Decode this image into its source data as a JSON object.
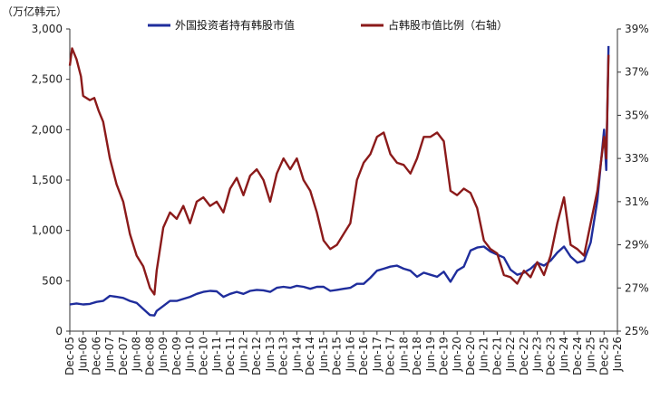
{
  "chart_data": {
    "type": "line",
    "unit_left": "（万亿韩元）",
    "legend_position": "top",
    "grid": false,
    "series": [
      {
        "name": "外国投资者持有韩股市值",
        "axis": "left",
        "color": "#1f2d9c",
        "points": [
          [
            "2005-12",
            265
          ],
          [
            "2006-03",
            275
          ],
          [
            "2006-06",
            265
          ],
          [
            "2006-09",
            270
          ],
          [
            "2006-12",
            290
          ],
          [
            "2007-03",
            300
          ],
          [
            "2007-06",
            350
          ],
          [
            "2007-09",
            340
          ],
          [
            "2007-12",
            330
          ],
          [
            "2008-03",
            300
          ],
          [
            "2008-06",
            280
          ],
          [
            "2008-09",
            220
          ],
          [
            "2008-12",
            160
          ],
          [
            "2009-02",
            155
          ],
          [
            "2009-03",
            200
          ],
          [
            "2009-06",
            250
          ],
          [
            "2009-09",
            300
          ],
          [
            "2009-12",
            300
          ],
          [
            "2010-03",
            320
          ],
          [
            "2010-06",
            340
          ],
          [
            "2010-09",
            370
          ],
          [
            "2010-12",
            390
          ],
          [
            "2011-03",
            400
          ],
          [
            "2011-06",
            395
          ],
          [
            "2011-09",
            340
          ],
          [
            "2011-12",
            370
          ],
          [
            "2012-03",
            390
          ],
          [
            "2012-06",
            370
          ],
          [
            "2012-09",
            400
          ],
          [
            "2012-12",
            410
          ],
          [
            "2013-03",
            405
          ],
          [
            "2013-06",
            390
          ],
          [
            "2013-09",
            430
          ],
          [
            "2013-12",
            440
          ],
          [
            "2014-03",
            430
          ],
          [
            "2014-06",
            450
          ],
          [
            "2014-09",
            440
          ],
          [
            "2014-12",
            420
          ],
          [
            "2015-03",
            440
          ],
          [
            "2015-06",
            440
          ],
          [
            "2015-09",
            400
          ],
          [
            "2015-12",
            410
          ],
          [
            "2016-03",
            420
          ],
          [
            "2016-06",
            430
          ],
          [
            "2016-09",
            470
          ],
          [
            "2016-12",
            470
          ],
          [
            "2017-03",
            530
          ],
          [
            "2017-06",
            600
          ],
          [
            "2017-09",
            620
          ],
          [
            "2017-12",
            640
          ],
          [
            "2018-03",
            650
          ],
          [
            "2018-06",
            620
          ],
          [
            "2018-09",
            600
          ],
          [
            "2018-12",
            540
          ],
          [
            "2019-03",
            580
          ],
          [
            "2019-06",
            560
          ],
          [
            "2019-09",
            540
          ],
          [
            "2019-12",
            590
          ],
          [
            "2020-03",
            490
          ],
          [
            "2020-06",
            600
          ],
          [
            "2020-09",
            640
          ],
          [
            "2020-12",
            800
          ],
          [
            "2021-03",
            830
          ],
          [
            "2021-06",
            840
          ],
          [
            "2021-09",
            790
          ],
          [
            "2021-12",
            760
          ],
          [
            "2022-03",
            730
          ],
          [
            "2022-06",
            610
          ],
          [
            "2022-09",
            560
          ],
          [
            "2022-12",
            580
          ],
          [
            "2023-03",
            620
          ],
          [
            "2023-06",
            680
          ],
          [
            "2023-09",
            650
          ],
          [
            "2023-12",
            700
          ],
          [
            "2024-03",
            780
          ],
          [
            "2024-06",
            840
          ],
          [
            "2024-09",
            740
          ],
          [
            "2024-12",
            680
          ],
          [
            "2025-03",
            700
          ],
          [
            "2025-06",
            880
          ],
          [
            "2025-09",
            1300
          ],
          [
            "2025-12",
            2000
          ],
          [
            "2026-01",
            1600
          ],
          [
            "2026-02",
            2830
          ]
        ]
      },
      {
        "name": "占韩股市值比例（右轴）",
        "axis": "right",
        "color": "#8b1a1a",
        "points": [
          [
            "2005-12",
            37.3
          ],
          [
            "2006-01",
            38.1
          ],
          [
            "2006-03",
            37.6
          ],
          [
            "2006-05",
            36.8
          ],
          [
            "2006-06",
            35.9
          ],
          [
            "2006-09",
            35.7
          ],
          [
            "2006-11",
            35.8
          ],
          [
            "2007-01",
            35.2
          ],
          [
            "2007-03",
            34.7
          ],
          [
            "2007-06",
            33.0
          ],
          [
            "2007-09",
            31.8
          ],
          [
            "2007-12",
            31.0
          ],
          [
            "2008-03",
            29.5
          ],
          [
            "2008-06",
            28.5
          ],
          [
            "2008-09",
            28.0
          ],
          [
            "2008-12",
            27.0
          ],
          [
            "2009-02",
            26.7
          ],
          [
            "2009-03",
            27.8
          ],
          [
            "2009-06",
            29.8
          ],
          [
            "2009-09",
            30.5
          ],
          [
            "2009-12",
            30.2
          ],
          [
            "2010-03",
            30.8
          ],
          [
            "2010-06",
            30.0
          ],
          [
            "2010-09",
            31.0
          ],
          [
            "2010-12",
            31.2
          ],
          [
            "2011-03",
            30.8
          ],
          [
            "2011-06",
            31.0
          ],
          [
            "2011-09",
            30.5
          ],
          [
            "2011-12",
            31.6
          ],
          [
            "2012-03",
            32.1
          ],
          [
            "2012-06",
            31.3
          ],
          [
            "2012-09",
            32.2
          ],
          [
            "2012-12",
            32.5
          ],
          [
            "2013-03",
            32.0
          ],
          [
            "2013-06",
            31.0
          ],
          [
            "2013-09",
            32.3
          ],
          [
            "2013-12",
            33.0
          ],
          [
            "2014-03",
            32.5
          ],
          [
            "2014-06",
            33.0
          ],
          [
            "2014-09",
            32.0
          ],
          [
            "2014-12",
            31.5
          ],
          [
            "2015-03",
            30.5
          ],
          [
            "2015-06",
            29.2
          ],
          [
            "2015-09",
            28.8
          ],
          [
            "2015-12",
            29.0
          ],
          [
            "2016-03",
            29.5
          ],
          [
            "2016-06",
            30.0
          ],
          [
            "2016-09",
            32.0
          ],
          [
            "2016-12",
            32.8
          ],
          [
            "2017-03",
            33.2
          ],
          [
            "2017-06",
            34.0
          ],
          [
            "2017-09",
            34.2
          ],
          [
            "2017-12",
            33.2
          ],
          [
            "2018-03",
            32.8
          ],
          [
            "2018-06",
            32.7
          ],
          [
            "2018-09",
            32.3
          ],
          [
            "2018-12",
            33.0
          ],
          [
            "2019-03",
            34.0
          ],
          [
            "2019-06",
            34.0
          ],
          [
            "2019-09",
            34.2
          ],
          [
            "2019-12",
            33.8
          ],
          [
            "2020-03",
            31.5
          ],
          [
            "2020-06",
            31.3
          ],
          [
            "2020-09",
            31.6
          ],
          [
            "2020-12",
            31.4
          ],
          [
            "2021-03",
            30.7
          ],
          [
            "2021-06",
            29.2
          ],
          [
            "2021-09",
            28.8
          ],
          [
            "2021-12",
            28.6
          ],
          [
            "2022-03",
            27.6
          ],
          [
            "2022-06",
            27.5
          ],
          [
            "2022-09",
            27.2
          ],
          [
            "2022-12",
            27.8
          ],
          [
            "2023-03",
            27.5
          ],
          [
            "2023-06",
            28.2
          ],
          [
            "2023-09",
            27.6
          ],
          [
            "2023-12",
            28.5
          ],
          [
            "2024-03",
            30.0
          ],
          [
            "2024-06",
            31.2
          ],
          [
            "2024-09",
            29.0
          ],
          [
            "2024-12",
            28.8
          ],
          [
            "2025-03",
            28.5
          ],
          [
            "2025-06",
            30.0
          ],
          [
            "2025-09",
            31.5
          ],
          [
            "2025-12",
            34.0
          ],
          [
            "2026-01",
            33.0
          ],
          [
            "2026-02",
            37.8
          ]
        ]
      }
    ],
    "left_axis": {
      "min": 0,
      "max": 3000,
      "ticks": [
        0,
        500,
        1000,
        1500,
        2000,
        2500,
        3000
      ],
      "tick_labels": [
        "0",
        "500",
        "1,000",
        "1,500",
        "2,000",
        "2,500",
        "3,000"
      ]
    },
    "right_axis": {
      "min": 25,
      "max": 39,
      "ticks": [
        25,
        27,
        29,
        31,
        33,
        35,
        37,
        39
      ],
      "tick_labels": [
        "25%",
        "27%",
        "29%",
        "31%",
        "33%",
        "35%",
        "37%",
        "39%"
      ]
    },
    "x_axis": {
      "min": "2005-12",
      "max": "2026-06",
      "tick_labels": [
        "Dec-05",
        "Jun-06",
        "Dec-06",
        "Jun-07",
        "Dec-07",
        "Jun-08",
        "Dec-08",
        "Jun-09",
        "Dec-09",
        "Jun-10",
        "Dec-10",
        "Jun-11",
        "Dec-11",
        "Jun-12",
        "Dec-12",
        "Jun-13",
        "Dec-13",
        "Jun-14",
        "Dec-14",
        "Jun-15",
        "Dec-15",
        "Jun-16",
        "Dec-16",
        "Jun-17",
        "Dec-17",
        "Jun-18",
        "Dec-18",
        "Jun-19",
        "Dec-19",
        "Jun-20",
        "Dec-20",
        "Jun-21",
        "Dec-21",
        "Jun-22",
        "Dec-22",
        "Jun-23",
        "Dec-23",
        "Jun-24",
        "Dec-24",
        "Jun-25",
        "Dec-25",
        "Jun-26"
      ]
    }
  }
}
